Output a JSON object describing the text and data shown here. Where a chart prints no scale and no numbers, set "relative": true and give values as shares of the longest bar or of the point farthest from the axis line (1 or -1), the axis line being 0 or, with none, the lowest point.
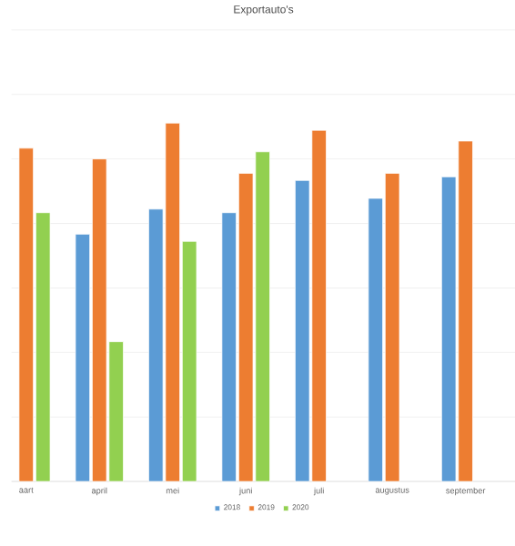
{
  "chart_data": {
    "type": "bar",
    "title": "Exportauto's",
    "relative": true,
    "categories": [
      "aart",
      "april",
      "mei",
      "juni",
      "juli",
      "augustus",
      "september"
    ],
    "series": [
      {
        "name": "2018",
        "color": "#5b9bd5",
        "values": [
          null,
          0.69,
          0.76,
          0.75,
          0.84,
          0.79,
          0.85
        ]
      },
      {
        "name": "2019",
        "color": "#ed7d31",
        "values": [
          0.93,
          0.9,
          1,
          0.86,
          0.98,
          0.86,
          0.95
        ]
      },
      {
        "name": "2020",
        "color": "#92d050",
        "values": [
          0.75,
          0.39,
          0.67,
          0.92,
          null,
          null,
          null
        ]
      }
    ],
    "grid": "y",
    "legend": "bottom"
  }
}
